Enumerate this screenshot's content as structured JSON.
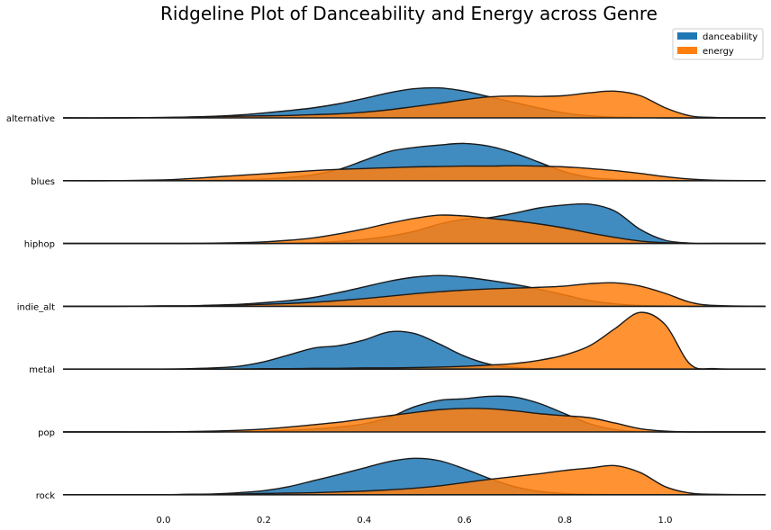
{
  "chart_data": {
    "type": "area",
    "title": "Ridgeline Plot of Danceability and Energy across Genre",
    "xlabel": "",
    "ylabel": "",
    "xlim": [
      -0.2,
      1.2
    ],
    "xticks": [
      0.0,
      0.2,
      0.4,
      0.6,
      0.8,
      1.0
    ],
    "xtick_labels": [
      "0.0",
      "0.2",
      "0.4",
      "0.6",
      "0.8",
      "1.0"
    ],
    "grid": false,
    "legend": {
      "position": "top-right"
    },
    "series": [
      {
        "name": "danceability",
        "color": "#1f77b4"
      },
      {
        "name": "energy",
        "color": "#ff7f0e"
      }
    ],
    "x": [
      -0.2,
      -0.1,
      0.0,
      0.05,
      0.1,
      0.15,
      0.2,
      0.25,
      0.3,
      0.35,
      0.4,
      0.45,
      0.5,
      0.55,
      0.6,
      0.65,
      0.7,
      0.75,
      0.8,
      0.85,
      0.9,
      0.95,
      1.0,
      1.05,
      1.1,
      1.2
    ],
    "genres": [
      {
        "name": "alternative",
        "danceability": [
          0,
          0,
          0.01,
          0.02,
          0.04,
          0.07,
          0.12,
          0.18,
          0.25,
          0.35,
          0.48,
          0.62,
          0.72,
          0.74,
          0.66,
          0.52,
          0.38,
          0.24,
          0.12,
          0.05,
          0.02,
          0.01,
          0,
          0,
          0,
          0
        ],
        "energy": [
          0,
          0,
          0.01,
          0.02,
          0.03,
          0.04,
          0.05,
          0.06,
          0.08,
          0.1,
          0.14,
          0.2,
          0.28,
          0.36,
          0.45,
          0.52,
          0.54,
          0.53,
          0.55,
          0.62,
          0.66,
          0.55,
          0.25,
          0.05,
          0.01,
          0
        ]
      },
      {
        "name": "blues",
        "danceability": [
          0,
          0,
          0,
          0,
          0.01,
          0.02,
          0.04,
          0.08,
          0.15,
          0.28,
          0.5,
          0.72,
          0.82,
          0.88,
          0.92,
          0.85,
          0.68,
          0.45,
          0.22,
          0.08,
          0.03,
          0.01,
          0,
          0,
          0,
          0
        ],
        "energy": [
          0,
          0,
          0.02,
          0.05,
          0.09,
          0.13,
          0.17,
          0.21,
          0.25,
          0.28,
          0.3,
          0.32,
          0.34,
          0.35,
          0.36,
          0.36,
          0.37,
          0.36,
          0.34,
          0.3,
          0.25,
          0.18,
          0.1,
          0.04,
          0.01,
          0
        ]
      },
      {
        "name": "hiphop",
        "danceability": [
          0,
          0,
          0,
          0,
          0,
          0,
          0,
          0.01,
          0.02,
          0.05,
          0.1,
          0.18,
          0.3,
          0.48,
          0.6,
          0.64,
          0.75,
          0.88,
          0.95,
          0.97,
          0.8,
          0.35,
          0.08,
          0.01,
          0,
          0
        ],
        "energy": [
          0,
          0,
          0,
          0,
          0.01,
          0.02,
          0.04,
          0.08,
          0.14,
          0.24,
          0.36,
          0.5,
          0.62,
          0.7,
          0.68,
          0.62,
          0.56,
          0.48,
          0.38,
          0.26,
          0.15,
          0.06,
          0.02,
          0,
          0,
          0
        ]
      },
      {
        "name": "indie_alt",
        "danceability": [
          0,
          0,
          0.01,
          0.01,
          0.03,
          0.05,
          0.09,
          0.14,
          0.22,
          0.34,
          0.48,
          0.62,
          0.72,
          0.76,
          0.72,
          0.64,
          0.54,
          0.42,
          0.28,
          0.14,
          0.06,
          0.02,
          0.01,
          0,
          0,
          0
        ],
        "energy": [
          0,
          0,
          0.01,
          0.01,
          0.02,
          0.03,
          0.05,
          0.07,
          0.1,
          0.14,
          0.19,
          0.25,
          0.31,
          0.36,
          0.4,
          0.43,
          0.45,
          0.47,
          0.5,
          0.56,
          0.58,
          0.5,
          0.32,
          0.1,
          0.02,
          0
        ]
      },
      {
        "name": "metal",
        "danceability": [
          0,
          0,
          0,
          0.01,
          0.03,
          0.07,
          0.18,
          0.35,
          0.52,
          0.58,
          0.72,
          0.92,
          0.88,
          0.62,
          0.32,
          0.12,
          0.04,
          0.01,
          0,
          0,
          0,
          0,
          0,
          0,
          0,
          0
        ],
        "energy": [
          0,
          0,
          0,
          0,
          0,
          0,
          0.01,
          0.01,
          0.02,
          0.02,
          0.03,
          0.03,
          0.04,
          0.05,
          0.07,
          0.1,
          0.14,
          0.22,
          0.35,
          0.58,
          1.0,
          1.4,
          1.1,
          0.12,
          0.01,
          0
        ]
      },
      {
        "name": "pop",
        "danceability": [
          0,
          0,
          0,
          0,
          0,
          0.01,
          0.02,
          0.04,
          0.07,
          0.12,
          0.2,
          0.36,
          0.62,
          0.78,
          0.82,
          0.88,
          0.86,
          0.7,
          0.45,
          0.2,
          0.06,
          0.01,
          0,
          0,
          0,
          0
        ],
        "energy": [
          0,
          0,
          0,
          0.01,
          0.02,
          0.04,
          0.07,
          0.12,
          0.18,
          0.24,
          0.32,
          0.4,
          0.48,
          0.55,
          0.58,
          0.57,
          0.52,
          0.45,
          0.4,
          0.35,
          0.22,
          0.08,
          0.02,
          0,
          0,
          0
        ]
      },
      {
        "name": "rock",
        "danceability": [
          0,
          0,
          0,
          0.01,
          0.02,
          0.05,
          0.1,
          0.2,
          0.35,
          0.5,
          0.66,
          0.82,
          0.9,
          0.84,
          0.64,
          0.4,
          0.2,
          0.08,
          0.03,
          0.01,
          0,
          0,
          0,
          0,
          0,
          0
        ],
        "energy": [
          0,
          0,
          0,
          0.01,
          0.01,
          0.02,
          0.03,
          0.04,
          0.05,
          0.07,
          0.09,
          0.12,
          0.16,
          0.22,
          0.3,
          0.38,
          0.45,
          0.52,
          0.6,
          0.66,
          0.72,
          0.55,
          0.2,
          0.04,
          0.01,
          0
        ]
      }
    ]
  }
}
